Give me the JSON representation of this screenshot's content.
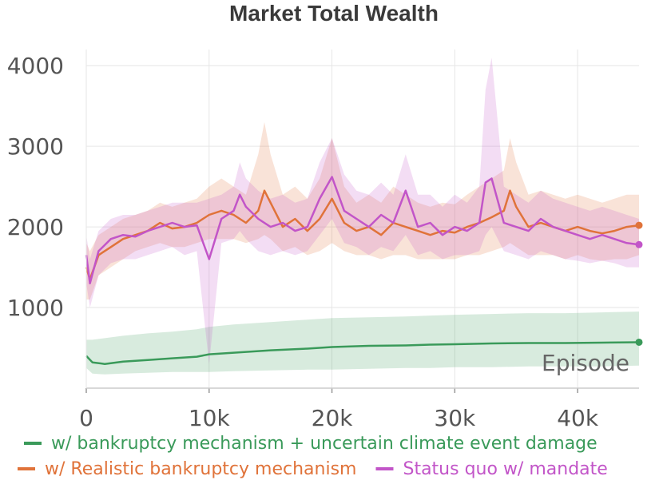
{
  "chart_data": {
    "type": "line",
    "title": "Market Total Wealth",
    "xlabel": "Episode",
    "ylabel": "",
    "xlim": [
      0,
      45000
    ],
    "ylim": [
      0,
      4200
    ],
    "x_ticks": [
      0,
      10000,
      20000,
      30000,
      40000
    ],
    "x_tick_labels": [
      "0",
      "10k",
      "20k",
      "30k",
      "40k"
    ],
    "y_ticks": [
      1000,
      2000,
      3000,
      4000
    ],
    "y_tick_labels": [
      "1000",
      "2000",
      "3000",
      "4000"
    ],
    "grid": true,
    "legend_position": "bottom",
    "series": [
      {
        "name": "w/ bankruptcy mechanism + uncertain climate event damage",
        "color": "#3a9a5a",
        "x": [
          0,
          500,
          1500,
          3000,
          5000,
          7000,
          9000,
          10000,
          12000,
          15000,
          18000,
          20000,
          23000,
          26000,
          28000,
          30000,
          33000,
          36000,
          39000,
          42000,
          45000
        ],
        "y": [
          400,
          320,
          300,
          330,
          350,
          370,
          390,
          420,
          440,
          470,
          490,
          510,
          525,
          530,
          540,
          545,
          555,
          560,
          560,
          565,
          570
        ],
        "band_low": [
          250,
          180,
          170,
          180,
          190,
          200,
          200,
          200,
          210,
          220,
          230,
          230,
          240,
          250,
          250,
          260,
          260,
          270,
          270,
          270,
          280
        ],
        "band_high": [
          600,
          600,
          620,
          650,
          680,
          700,
          730,
          760,
          790,
          820,
          850,
          870,
          880,
          890,
          900,
          910,
          920,
          930,
          930,
          940,
          950
        ]
      },
      {
        "name": "w/ Realistic bankruptcy mechanism",
        "color": "#e0733a",
        "x": [
          0,
          300,
          1000,
          2000,
          3000,
          4000,
          5000,
          6000,
          7000,
          8000,
          9000,
          10000,
          11000,
          12000,
          13000,
          14000,
          14500,
          15000,
          16000,
          17000,
          18000,
          19000,
          20000,
          21000,
          22000,
          23000,
          24000,
          25000,
          26000,
          27000,
          28000,
          29000,
          30000,
          31000,
          32000,
          33000,
          34000,
          34500,
          35000,
          36000,
          37000,
          38000,
          39000,
          40000,
          41000,
          42000,
          43000,
          44000,
          45000
        ],
        "y": [
          1500,
          1350,
          1650,
          1750,
          1850,
          1900,
          1950,
          2050,
          1980,
          2000,
          2050,
          2150,
          2200,
          2150,
          2050,
          2200,
          2450,
          2300,
          2000,
          2100,
          1950,
          2100,
          2350,
          2050,
          1950,
          2000,
          1900,
          2050,
          2000,
          1950,
          1900,
          1950,
          1930,
          2000,
          2050,
          2120,
          2200,
          2450,
          2250,
          2000,
          2050,
          2000,
          1950,
          2000,
          1950,
          1920,
          1950,
          2000,
          2020
        ],
        "band_low": [
          1100,
          1100,
          1400,
          1500,
          1600,
          1700,
          1750,
          1800,
          1750,
          1750,
          1800,
          1850,
          1850,
          1850,
          1800,
          1850,
          1900,
          1850,
          1700,
          1750,
          1650,
          1700,
          1800,
          1700,
          1650,
          1650,
          1600,
          1650,
          1650,
          1600,
          1600,
          1600,
          1600,
          1650,
          1650,
          1700,
          1750,
          1800,
          1750,
          1650,
          1650,
          1650,
          1600,
          1650,
          1600,
          1580,
          1600,
          1600,
          1650
        ],
        "band_high": [
          1800,
          1700,
          1900,
          2000,
          2100,
          2150,
          2200,
          2300,
          2250,
          2300,
          2350,
          2500,
          2600,
          2500,
          2400,
          2900,
          3300,
          2900,
          2400,
          2500,
          2350,
          2600,
          3100,
          2500,
          2300,
          2400,
          2300,
          2500,
          2400,
          2300,
          2250,
          2300,
          2280,
          2400,
          2500,
          2600,
          2700,
          3100,
          2800,
          2400,
          2450,
          2400,
          2350,
          2400,
          2350,
          2300,
          2350,
          2400,
          2400
        ]
      },
      {
        "name": "Status quo w/ mandate",
        "color": "#c255c8",
        "x": [
          0,
          300,
          1000,
          2000,
          3000,
          4000,
          5000,
          6000,
          7000,
          8000,
          9000,
          10000,
          11000,
          12000,
          12500,
          13000,
          14000,
          15000,
          16000,
          17000,
          18000,
          19000,
          20000,
          21000,
          22000,
          23000,
          24000,
          25000,
          26000,
          27000,
          28000,
          29000,
          30000,
          31000,
          32000,
          32500,
          33000,
          34000,
          35000,
          36000,
          37000,
          38000,
          39000,
          40000,
          41000,
          42000,
          43000,
          44000,
          45000
        ],
        "y": [
          1650,
          1300,
          1700,
          1850,
          1900,
          1880,
          1950,
          2000,
          2050,
          2000,
          2020,
          1600,
          2100,
          2200,
          2400,
          2250,
          2100,
          2000,
          2050,
          1950,
          2000,
          2350,
          2620,
          2200,
          2100,
          2000,
          2150,
          2050,
          2450,
          2000,
          2050,
          1900,
          2000,
          1950,
          2050,
          2550,
          2600,
          2050,
          2000,
          1950,
          2100,
          2000,
          1950,
          1900,
          1850,
          1900,
          1850,
          1800,
          1780
        ],
        "band_low": [
          1300,
          1000,
          1400,
          1550,
          1600,
          1600,
          1650,
          1700,
          1750,
          1650,
          1700,
          300,
          1800,
          1850,
          1950,
          1850,
          1700,
          1650,
          1700,
          1650,
          1700,
          1900,
          2100,
          1800,
          1750,
          1650,
          1750,
          1700,
          1900,
          1650,
          1700,
          1600,
          1650,
          1650,
          1700,
          1900,
          2000,
          1700,
          1650,
          1600,
          1700,
          1650,
          1600,
          1580,
          1550,
          1580,
          1550,
          1500,
          1500
        ],
        "band_high": [
          1900,
          1600,
          1950,
          2100,
          2150,
          2150,
          2200,
          2250,
          2300,
          2300,
          2300,
          2350,
          2400,
          2500,
          2800,
          2600,
          2450,
          2350,
          2400,
          2300,
          2350,
          2800,
          3100,
          2650,
          2450,
          2400,
          2550,
          2400,
          2900,
          2400,
          2400,
          2250,
          2400,
          2300,
          2500,
          3700,
          4100,
          2500,
          2400,
          2300,
          2450,
          2350,
          2300,
          2250,
          2200,
          2250,
          2200,
          2150,
          2100
        ]
      }
    ],
    "legend": [
      {
        "label": "w/ bankruptcy mechanism + uncertain climate event damage",
        "color": "#3a9a5a"
      },
      {
        "label": "w/ Realistic bankruptcy mechanism",
        "color": "#e0733a"
      },
      {
        "label": "Status quo w/ mandate",
        "color": "#c255c8"
      }
    ]
  }
}
